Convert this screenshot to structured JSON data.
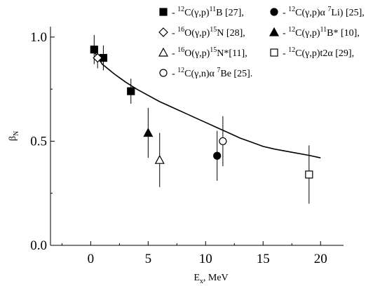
{
  "chart_data": {
    "type": "scatter",
    "title": "",
    "xlabel": "E",
    "xlabel_sub": "x",
    "xlabel_unit": ", MeV",
    "ylabel": "β",
    "ylabel_sub": "N",
    "xlim": [
      -3.5,
      22
    ],
    "ylim": [
      0,
      1.05
    ],
    "x_ticks": [
      0,
      5,
      10,
      15,
      20
    ],
    "x_tick_labels": [
      "0",
      "5",
      "10",
      "15",
      "20"
    ],
    "y_ticks": [
      0,
      0.5,
      1.0
    ],
    "y_tick_labels": [
      "0.0",
      "0.5",
      "1.0"
    ],
    "grid": false,
    "legend_position": "top",
    "series": [
      {
        "name": "- {12}C(γ,p){11}B [27],",
        "marker": "filled-square",
        "points": [
          {
            "x": 0.3,
            "y": 0.94,
            "err": 0.07
          },
          {
            "x": 1.1,
            "y": 0.9,
            "err": 0.06
          },
          {
            "x": 3.5,
            "y": 0.74,
            "err": 0.06
          }
        ]
      },
      {
        "name": "- {12}C(γ,p)α {7}Li) [25],",
        "marker": "filled-circle",
        "points": [
          {
            "x": 11.0,
            "y": 0.43,
            "err": 0.12
          }
        ]
      },
      {
        "name": "- {16}O(γ,p){15}N [28],",
        "marker": "open-diamond",
        "points": [
          {
            "x": 0.6,
            "y": 0.9,
            "err": 0.05
          }
        ]
      },
      {
        "name": "- {12}C(γ,p){11}B* [10],",
        "marker": "filled-triangle",
        "points": [
          {
            "x": 5.0,
            "y": 0.54,
            "err": 0.12
          }
        ]
      },
      {
        "name": "- {16}O(γ,p){15}N*[11],",
        "marker": "open-triangle",
        "points": [
          {
            "x": 6.0,
            "y": 0.41,
            "err": 0.13
          }
        ]
      },
      {
        "name": "- {12}C(γ,p)t2α [29],",
        "marker": "open-square",
        "points": [
          {
            "x": 19.0,
            "y": 0.34,
            "err": 0.14
          }
        ]
      },
      {
        "name": "- {12}C(γ,n)α {7}Be [25].",
        "marker": "open-circle",
        "points": [
          {
            "x": 11.5,
            "y": 0.5,
            "err": 0.12
          }
        ]
      }
    ],
    "curve": {
      "x": [
        0.3,
        1,
        2,
        3,
        4,
        5,
        6,
        7,
        8,
        9,
        10,
        11,
        12,
        13,
        14,
        15,
        16,
        17,
        18,
        19,
        20
      ],
      "y": [
        0.93,
        0.87,
        0.825,
        0.785,
        0.75,
        0.72,
        0.69,
        0.665,
        0.64,
        0.615,
        0.59,
        0.565,
        0.54,
        0.515,
        0.495,
        0.475,
        0.462,
        0.452,
        0.442,
        0.432,
        0.42
      ]
    }
  }
}
